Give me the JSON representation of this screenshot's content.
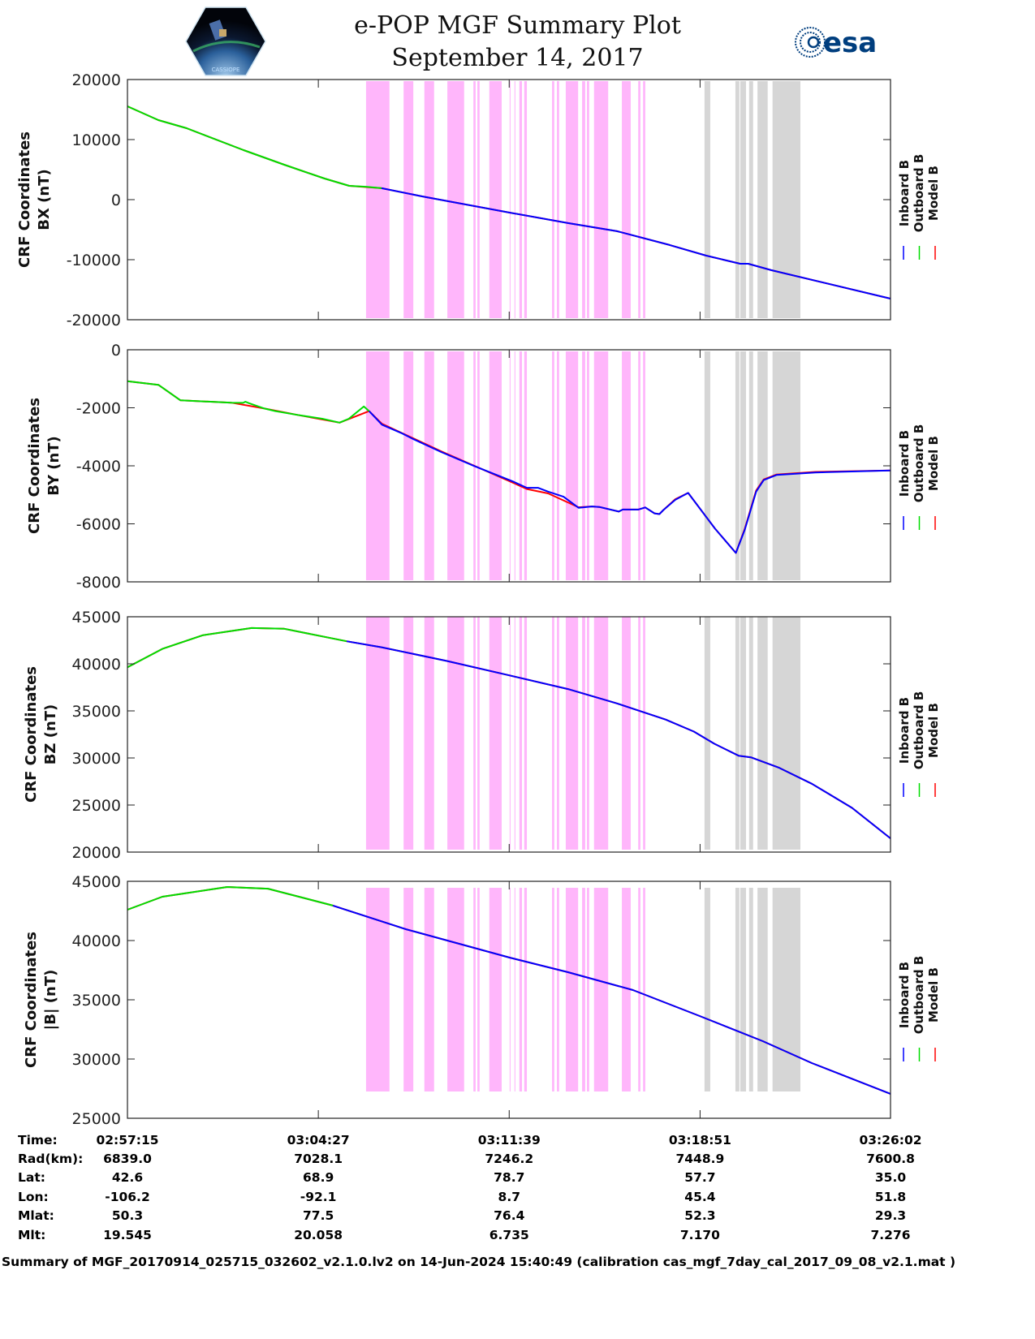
{
  "header": {
    "title": "e-POP MGF Summary Plot",
    "date": "September 14, 2017",
    "logo_left_text": "CASSIOPE",
    "logo_right_text": "esa"
  },
  "colors": {
    "inboard": "#0000ff",
    "outboard": "#00dd00",
    "model": "#ff0000",
    "band_pink": "#ffb6fb",
    "band_gray": "#d6d6d6"
  },
  "time_axis": {
    "start": "02:57:15",
    "end": "03:26:02",
    "unit": "seconds since 02:57:15",
    "range": [
      0,
      1727
    ],
    "ticks": [
      0,
      432,
      864,
      1296,
      1727
    ]
  },
  "bands": {
    "pink": [
      [
        540,
        593
      ],
      [
        625,
        647
      ],
      [
        672,
        694
      ],
      [
        724,
        762
      ],
      [
        783,
        788
      ],
      [
        792,
        797
      ],
      [
        819,
        847
      ],
      [
        865,
        867
      ],
      [
        876,
        878
      ],
      [
        887,
        893
      ],
      [
        898,
        904
      ],
      [
        961,
        966
      ],
      [
        972,
        977
      ],
      [
        992,
        1020
      ],
      [
        1029,
        1036
      ],
      [
        1040,
        1045
      ],
      [
        1056,
        1088
      ],
      [
        1119,
        1139
      ],
      [
        1156,
        1161
      ],
      [
        1167,
        1172
      ]
    ],
    "gray": [
      [
        1306,
        1319
      ],
      [
        1376,
        1385
      ],
      [
        1387,
        1400
      ],
      [
        1407,
        1416
      ],
      [
        1426,
        1449
      ],
      [
        1460,
        1523
      ]
    ]
  },
  "legend": [
    "Inboard B",
    "Outboard B",
    "Model B"
  ],
  "chart_data": [
    {
      "type": "line",
      "ylabel": [
        "CRF Coordinates",
        "BX (nT)"
      ],
      "ylim": [
        -20000,
        20000
      ],
      "yticks": [
        -20000,
        -10000,
        0,
        10000,
        20000
      ],
      "ytick_labels": [
        "-20000",
        "-10000",
        "0",
        "10000",
        "20000"
      ],
      "series": [
        {
          "name": "Model B",
          "color": "#ff0000",
          "points": [
            [
              0,
              15540
            ],
            [
              70,
              13240
            ],
            [
              134,
              11890
            ],
            [
              263,
              8240
            ],
            [
              355,
              5810
            ],
            [
              446,
              3520
            ],
            [
              502,
              2300
            ],
            [
              540,
              2100
            ],
            [
              575,
              1900
            ],
            [
              667,
              540
            ],
            [
              865,
              -2160
            ],
            [
              997,
              -3910
            ],
            [
              1108,
              -5260
            ],
            [
              1227,
              -7560
            ],
            [
              1310,
              -9320
            ],
            [
              1387,
              -10670
            ],
            [
              1405,
              -10670
            ],
            [
              1457,
              -11750
            ],
            [
              1727,
              -16480
            ]
          ]
        },
        {
          "name": "Inboard B",
          "color": "#0000ff",
          "points": [
            [
              575,
              1900
            ],
            [
              667,
              540
            ],
            [
              865,
              -2160
            ],
            [
              997,
              -3910
            ],
            [
              1108,
              -5260
            ],
            [
              1227,
              -7560
            ],
            [
              1310,
              -9320
            ],
            [
              1387,
              -10670
            ],
            [
              1405,
              -10670
            ],
            [
              1457,
              -11750
            ],
            [
              1727,
              -16480
            ]
          ]
        },
        {
          "name": "Outboard B",
          "color": "#00dd00",
          "points": [
            [
              0,
              15540
            ],
            [
              70,
              13240
            ],
            [
              134,
              11890
            ],
            [
              263,
              8240
            ],
            [
              355,
              5810
            ],
            [
              446,
              3520
            ],
            [
              502,
              2300
            ],
            [
              540,
              2150
            ],
            [
              575,
              1900
            ]
          ]
        }
      ]
    },
    {
      "type": "line",
      "ylabel": [
        "CRF Coordinates",
        "BY (nT)"
      ],
      "ylim": [
        -8000,
        0
      ],
      "yticks": [
        -8000,
        -6000,
        -4000,
        -2000,
        0
      ],
      "ytick_labels": [
        "-8000",
        "-6000",
        "-4000",
        "-2000",
        "0"
      ],
      "series": [
        {
          "name": "Model B",
          "color": "#ff0000",
          "points": [
            [
              0,
              -1084
            ],
            [
              70,
              -1207
            ],
            [
              120,
              -1744
            ],
            [
              235,
              -1824
            ],
            [
              310,
              -2026
            ],
            [
              385,
              -2247
            ],
            [
              480,
              -2511
            ],
            [
              547,
              -2115
            ],
            [
              576,
              -2550
            ],
            [
              710,
              -3500
            ],
            [
              872,
              -4580
            ],
            [
              904,
              -4800
            ],
            [
              952,
              -4950
            ],
            [
              1021,
              -5430
            ],
            [
              1051,
              -5401
            ],
            [
              1068,
              -5419
            ],
            [
              1112,
              -5577
            ],
            [
              1121,
              -5507
            ],
            [
              1156,
              -5507
            ],
            [
              1172,
              -5436
            ],
            [
              1193,
              -5639
            ],
            [
              1204,
              -5665
            ],
            [
              1213,
              -5525
            ],
            [
              1240,
              -5150
            ],
            [
              1269,
              -4934
            ],
            [
              1330,
              -6167
            ],
            [
              1377,
              -7004
            ],
            [
              1397,
              -6180
            ],
            [
              1423,
              -4850
            ],
            [
              1440,
              -4470
            ],
            [
              1469,
              -4300
            ],
            [
              1557,
              -4210
            ],
            [
              1727,
              -4159
            ]
          ]
        },
        {
          "name": "Inboard B",
          "color": "#0000ff",
          "points": [
            [
              547,
              -2115
            ],
            [
              576,
              -2581
            ],
            [
              619,
              -2863
            ],
            [
              648,
              -3084
            ],
            [
              710,
              -3524
            ],
            [
              785,
              -4009
            ],
            [
              872,
              -4537
            ],
            [
              904,
              -4758
            ],
            [
              929,
              -4758
            ],
            [
              952,
              -4890
            ],
            [
              987,
              -5066
            ],
            [
              1021,
              -5445
            ],
            [
              1051,
              -5401
            ],
            [
              1068,
              -5419
            ],
            [
              1112,
              -5577
            ],
            [
              1121,
              -5507
            ],
            [
              1156,
              -5507
            ],
            [
              1172,
              -5436
            ],
            [
              1193,
              -5639
            ],
            [
              1204,
              -5665
            ],
            [
              1213,
              -5525
            ],
            [
              1240,
              -5172
            ],
            [
              1269,
              -4934
            ],
            [
              1330,
              -6167
            ],
            [
              1377,
              -7004
            ],
            [
              1397,
              -6211
            ],
            [
              1423,
              -4890
            ],
            [
              1440,
              -4493
            ],
            [
              1469,
              -4317
            ],
            [
              1557,
              -4229
            ],
            [
              1727,
              -4159
            ]
          ]
        },
        {
          "name": "Outboard B",
          "color": "#00dd00",
          "points": [
            [
              0,
              -1084
            ],
            [
              70,
              -1207
            ],
            [
              120,
              -1744
            ],
            [
              235,
              -1824
            ],
            [
              262,
              -1830
            ],
            [
              267,
              -1790
            ],
            [
              275,
              -1840
            ],
            [
              310,
              -2026
            ],
            [
              335,
              -2115
            ],
            [
              385,
              -2247
            ],
            [
              441,
              -2379
            ],
            [
              480,
              -2511
            ],
            [
              501,
              -2379
            ],
            [
              535,
              -1956
            ],
            [
              547,
              -2115
            ]
          ]
        }
      ]
    },
    {
      "type": "line",
      "ylabel": [
        "CRF Coordinates",
        "BZ (nT)"
      ],
      "ylim": [
        20000,
        45000
      ],
      "yticks": [
        20000,
        25000,
        30000,
        35000,
        40000,
        45000
      ],
      "ytick_labels": [
        "20000",
        "25000",
        "30000",
        "35000",
        "40000",
        "45000"
      ],
      "series": [
        {
          "name": "Model B",
          "color": "#ff0000",
          "points": [
            [
              0,
              39630
            ],
            [
              79,
              41590
            ],
            [
              171,
              43040
            ],
            [
              281,
              43800
            ],
            [
              355,
              43720
            ],
            [
              496,
              42400
            ],
            [
              575,
              41760
            ],
            [
              722,
              40310
            ],
            [
              865,
              38770
            ],
            [
              997,
              37320
            ],
            [
              1108,
              35790
            ],
            [
              1218,
              34080
            ],
            [
              1282,
              32800
            ],
            [
              1328,
              31520
            ],
            [
              1383,
              30240
            ],
            [
              1411,
              30070
            ],
            [
              1475,
              28960
            ],
            [
              1549,
              27260
            ],
            [
              1640,
              24700
            ],
            [
              1727,
              21460
            ]
          ]
        },
        {
          "name": "Inboard B",
          "color": "#0000ff",
          "points": [
            [
              496,
              42400
            ],
            [
              575,
              41760
            ],
            [
              722,
              40310
            ],
            [
              865,
              38770
            ],
            [
              997,
              37320
            ],
            [
              1108,
              35790
            ],
            [
              1218,
              34080
            ],
            [
              1282,
              32800
            ],
            [
              1328,
              31520
            ],
            [
              1383,
              30240
            ],
            [
              1411,
              30070
            ],
            [
              1475,
              28960
            ],
            [
              1549,
              27260
            ],
            [
              1640,
              24700
            ],
            [
              1727,
              21460
            ]
          ]
        },
        {
          "name": "Outboard B",
          "color": "#00dd00",
          "points": [
            [
              0,
              39630
            ],
            [
              79,
              41590
            ],
            [
              171,
              43040
            ],
            [
              281,
              43800
            ],
            [
              355,
              43720
            ],
            [
              496,
              42400
            ]
          ]
        }
      ]
    },
    {
      "type": "line",
      "ylabel": [
        "CRF Coordinates",
        "|B| (nT)"
      ],
      "ylim": [
        25000,
        45000
      ],
      "yticks": [
        25000,
        30000,
        35000,
        40000,
        45000
      ],
      "ytick_labels": [
        "25000",
        "30000",
        "35000",
        "40000",
        "45000"
      ],
      "series": [
        {
          "name": "Model B",
          "color": "#ff0000",
          "points": [
            [
              0,
              42600
            ],
            [
              79,
              43700
            ],
            [
              226,
              44520
            ],
            [
              318,
              44380
            ],
            [
              465,
              42950
            ],
            [
              630,
              40960
            ],
            [
              865,
              38560
            ],
            [
              997,
              37330
            ],
            [
              1144,
              35820
            ],
            [
              1295,
              33630
            ],
            [
              1438,
              31510
            ],
            [
              1549,
              29660
            ],
            [
              1727,
              27060
            ]
          ]
        },
        {
          "name": "Inboard B",
          "color": "#0000ff",
          "points": [
            [
              465,
              42950
            ],
            [
              630,
              40960
            ],
            [
              865,
              38560
            ],
            [
              997,
              37330
            ],
            [
              1144,
              35820
            ],
            [
              1295,
              33630
            ],
            [
              1438,
              31510
            ],
            [
              1549,
              29660
            ],
            [
              1727,
              27060
            ]
          ]
        },
        {
          "name": "Outboard B",
          "color": "#00dd00",
          "points": [
            [
              0,
              42600
            ],
            [
              79,
              43700
            ],
            [
              226,
              44520
            ],
            [
              318,
              44380
            ],
            [
              465,
              42950
            ]
          ]
        }
      ]
    }
  ],
  "orbit_table": {
    "rows": [
      {
        "label": "Time:",
        "values": [
          "02:57:15",
          "03:04:27",
          "03:11:39",
          "03:18:51",
          "03:26:02"
        ]
      },
      {
        "label": "Rad(km):",
        "values": [
          "6839.0",
          "7028.1",
          "7246.2",
          "7448.9",
          "7600.8"
        ]
      },
      {
        "label": "Lat:",
        "values": [
          "42.6",
          "68.9",
          "78.7",
          "57.7",
          "35.0"
        ]
      },
      {
        "label": "Lon:",
        "values": [
          "-106.2",
          "-92.1",
          "8.7",
          "45.4",
          "51.8"
        ]
      },
      {
        "label": "Mlat:",
        "values": [
          "50.3",
          "77.5",
          "76.4",
          "52.3",
          "29.3"
        ]
      },
      {
        "label": "Mlt:",
        "values": [
          "19.545",
          "20.058",
          "6.735",
          "7.170",
          "7.276"
        ]
      }
    ]
  },
  "footer": "Summary of MGF_20170914_025715_032602_v2.1.0.lv2 on 14-Jun-2024 15:40:49 (calibration cas_mgf_7day_cal_2017_09_08_v2.1.mat )"
}
